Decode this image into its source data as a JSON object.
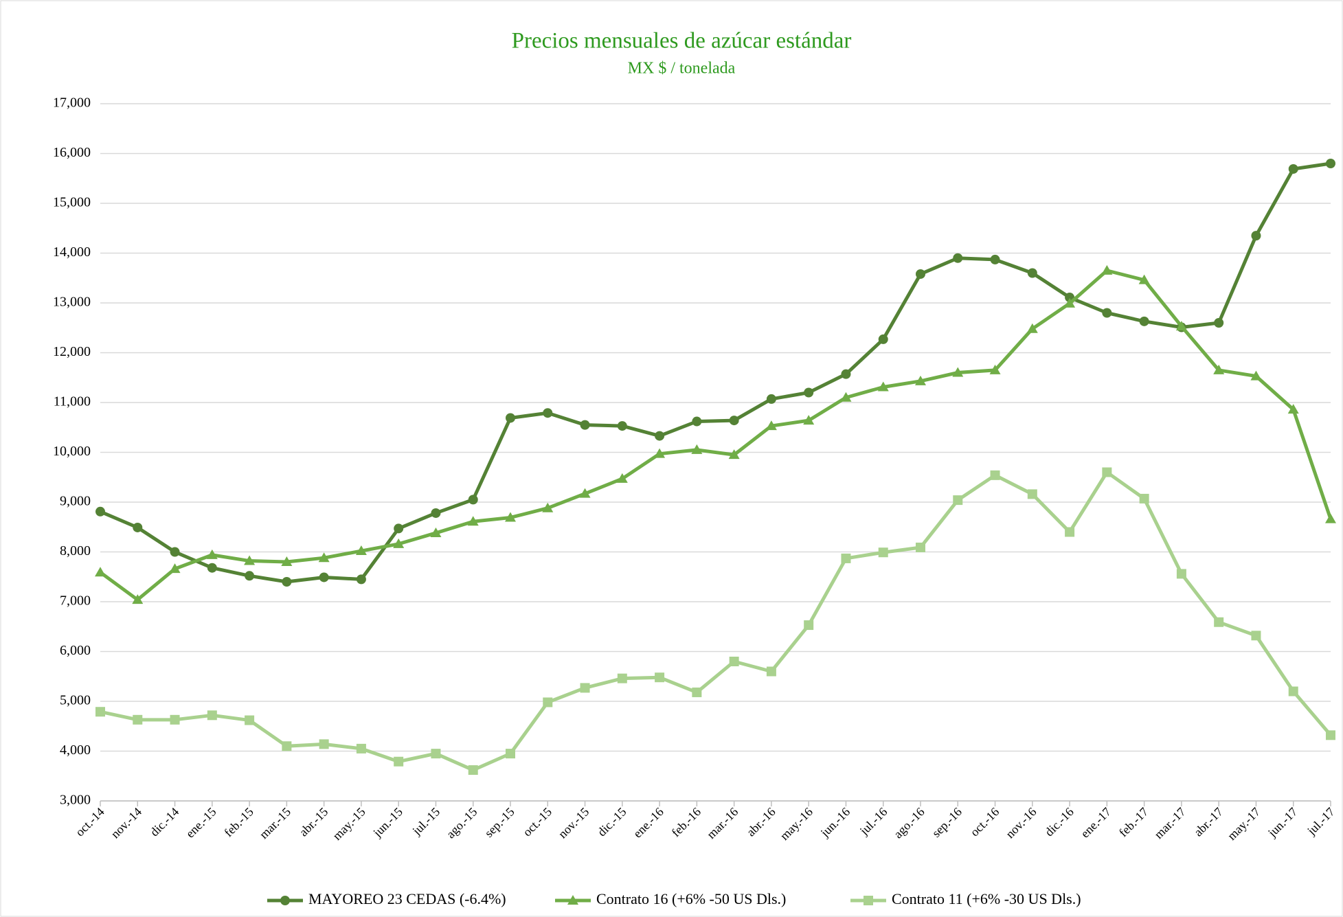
{
  "chart_data": {
    "type": "line",
    "title": "Precios mensuales de azúcar estándar",
    "subtitle": "MX $ / tonelada",
    "categories": [
      "oct.-14",
      "nov.-14",
      "dic.-14",
      "ene.-15",
      "feb.-15",
      "mar.-15",
      "abr.-15",
      "may.-15",
      "jun.-15",
      "jul.-15",
      "ago.-15",
      "sep.-15",
      "oct.-15",
      "nov.-15",
      "dic.-15",
      "ene.-16",
      "feb.-16",
      "mar.-16",
      "abr.-16",
      "may.-16",
      "jun.-16",
      "jul.-16",
      "ago.-16",
      "sep.-16",
      "oct.-16",
      "nov.-16",
      "dic.-16",
      "ene.-17",
      "feb.-17",
      "mar.-17",
      "abr.-17",
      "may.-17",
      "jun.-17",
      "jul.-17"
    ],
    "series": [
      {
        "name": "MAYOREO 23 CEDAS (-6.4%)",
        "color": "#548235",
        "marker": "circle",
        "values": [
          8810,
          8490,
          8000,
          7680,
          7520,
          7400,
          7490,
          7450,
          8470,
          8780,
          9050,
          10690,
          10790,
          10550,
          10530,
          10330,
          10620,
          10640,
          11070,
          11200,
          11570,
          12270,
          13580,
          13900,
          13870,
          13600,
          13110,
          12800,
          12630,
          12510,
          12600,
          14350,
          15690,
          15800
        ]
      },
      {
        "name": "Contrato 16 (+6% -50 US Dls.)",
        "color": "#70ad47",
        "marker": "triangle",
        "values": [
          7590,
          7040,
          7660,
          7940,
          7820,
          7800,
          7880,
          8020,
          8160,
          8380,
          8610,
          8690,
          8880,
          9170,
          9470,
          9970,
          10050,
          9950,
          10530,
          10640,
          11100,
          11310,
          11430,
          11600,
          11650,
          12480,
          12990,
          13650,
          13460,
          12530,
          11650,
          11530,
          10860,
          8660
        ]
      },
      {
        "name": "Contrato 11 (+6% -30 US Dls.)",
        "color": "#a9d18e",
        "marker": "square",
        "values": [
          4790,
          4630,
          4630,
          4720,
          4620,
          4100,
          4140,
          4050,
          3790,
          3950,
          3620,
          3950,
          4980,
          5270,
          5460,
          5480,
          5180,
          5800,
          5600,
          6530,
          7870,
          7990,
          8090,
          9040,
          9540,
          9160,
          8400,
          9600,
          9070,
          7560,
          6590,
          6320,
          5200,
          4320
        ]
      }
    ],
    "ylim": [
      3000,
      17000
    ],
    "yticks": [
      {
        "value": 3000,
        "label": "3,000"
      },
      {
        "value": 4000,
        "label": "4,000"
      },
      {
        "value": 5000,
        "label": "5,000"
      },
      {
        "value": 6000,
        "label": "6,000"
      },
      {
        "value": 7000,
        "label": "7,000"
      },
      {
        "value": 8000,
        "label": "8,000"
      },
      {
        "value": 9000,
        "label": "9,000"
      },
      {
        "value": 10000,
        "label": "10,000"
      },
      {
        "value": 11000,
        "label": "11,000"
      },
      {
        "value": 12000,
        "label": "12,000"
      },
      {
        "value": 13000,
        "label": "13,000"
      },
      {
        "value": 14000,
        "label": "14,000"
      },
      {
        "value": 15000,
        "label": "15,000"
      },
      {
        "value": 16000,
        "label": "16,000"
      },
      {
        "value": 17000,
        "label": "17,000"
      }
    ],
    "grid": true,
    "legend": "bottom",
    "title_color": "#2e9a1f"
  }
}
